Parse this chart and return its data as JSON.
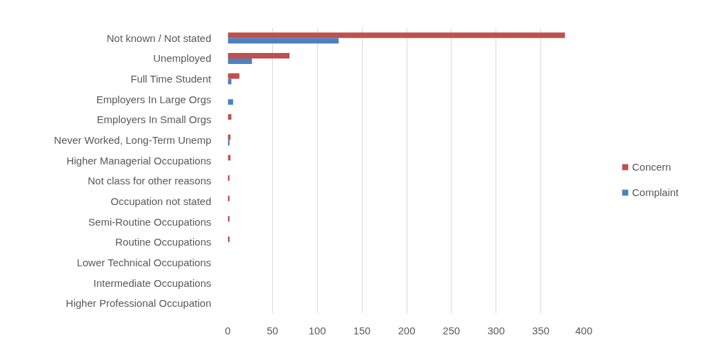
{
  "chart_data": {
    "type": "bar",
    "orientation": "horizontal",
    "categories": [
      "Not known / Not stated",
      "Unemployed",
      "Full Time Student",
      "Employers In Large Orgs",
      "Employers In Small Orgs",
      "Never Worked, Long-Term Unemp",
      "Higher Managerial Occupations",
      "Not class for other reasons",
      "Occupation not stated",
      "Semi-Routine Occupations",
      "Routine Occupations",
      "Lower Technical Occupations",
      "Intermediate Occupations",
      "Higher Professional Occupation"
    ],
    "series": [
      {
        "name": "Concern",
        "color": "#c0504d",
        "values": [
          377,
          69,
          13,
          null,
          4,
          3,
          3,
          2,
          2,
          2,
          2,
          null,
          null,
          null
        ]
      },
      {
        "name": "Complaint",
        "color": "#4f81bd",
        "values": [
          124,
          27,
          4,
          6,
          null,
          2,
          null,
          null,
          null,
          null,
          null,
          null,
          null,
          null
        ]
      }
    ],
    "xlim": [
      0,
      400
    ],
    "xticks": [
      0,
      50,
      100,
      150,
      200,
      250,
      300,
      350,
      400
    ],
    "grid": "x",
    "legend": "right"
  }
}
